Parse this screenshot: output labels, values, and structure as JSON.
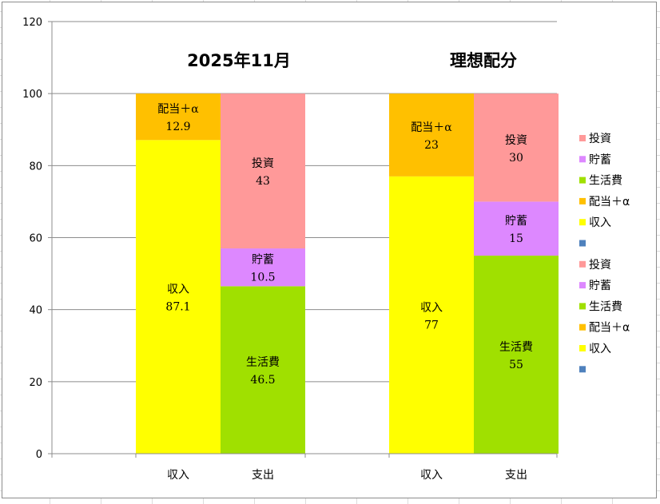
{
  "chart_data": {
    "type": "bar",
    "stacked": true,
    "ylim": [
      0,
      120
    ],
    "yticks": [
      "0",
      "20",
      "40",
      "60",
      "80",
      "100",
      "120"
    ],
    "grid": true,
    "legend_position": "right",
    "groups": [
      {
        "title": "2025年11月",
        "bars": [
          {
            "category": "収入",
            "segments": [
              {
                "name": "収入",
                "value": 87.1,
                "label": "87.1",
                "color": "#ffff00"
              },
              {
                "name": "配当＋α",
                "value": 12.9,
                "label": "12.9",
                "color": "#ffc000"
              }
            ]
          },
          {
            "category": "支出",
            "segments": [
              {
                "name": "生活費",
                "value": 46.5,
                "label": "46.5",
                "color": "#a0e000"
              },
              {
                "name": "貯蓄",
                "value": 10.5,
                "label": "10.5",
                "color": "#dd88ff"
              },
              {
                "name": "投資",
                "value": 43,
                "label": "43",
                "color": "#ff9999"
              }
            ]
          }
        ]
      },
      {
        "title": "理想配分",
        "bars": [
          {
            "category": "収入",
            "segments": [
              {
                "name": "収入",
                "value": 77,
                "label": "77",
                "color": "#ffff00"
              },
              {
                "name": "配当＋α",
                "value": 23,
                "label": "23",
                "color": "#ffc000"
              }
            ]
          },
          {
            "category": "支出",
            "segments": [
              {
                "name": "生活費",
                "value": 55,
                "label": "55",
                "color": "#a0e000"
              },
              {
                "name": "貯蓄",
                "value": 15,
                "label": "15",
                "color": "#dd88ff"
              },
              {
                "name": "投資",
                "value": 30,
                "label": "30",
                "color": "#ff9999"
              }
            ]
          }
        ]
      }
    ],
    "legend": [
      {
        "name": "投資",
        "color": "#ff9999"
      },
      {
        "name": "貯蓄",
        "color": "#dd88ff"
      },
      {
        "name": "生活費",
        "color": "#a0e000"
      },
      {
        "name": "配当＋α",
        "color": "#ffc000"
      },
      {
        "name": "収入",
        "color": "#ffff00"
      },
      {
        "name": "",
        "color": "#4f81bd"
      },
      {
        "name": "投資",
        "color": "#ff9999"
      },
      {
        "name": "貯蓄",
        "color": "#dd88ff"
      },
      {
        "name": "生活費",
        "color": "#a0e000"
      },
      {
        "name": "配当＋α",
        "color": "#ffc000"
      },
      {
        "name": "収入",
        "color": "#ffff00"
      },
      {
        "name": "",
        "color": "#4f81bd"
      }
    ]
  }
}
